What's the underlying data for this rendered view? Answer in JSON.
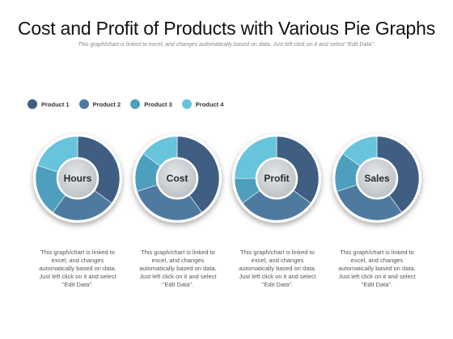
{
  "title": "Cost and Profit of Products with Various Pie Graphs",
  "subtitle": "This graph/chart is linked to excel, and changes automatically based on data. Just left click on it and select \"Edit Data\".",
  "colors": {
    "product1": "#3f5e82",
    "product2": "#4f7aa0",
    "product3": "#4d9fbd",
    "product4": "#68c3dc"
  },
  "description": "This graph/chart is linked to excel, and changes automatically based on data. Just left click on it and select \"Edit Data\".",
  "chart_data": [
    {
      "type": "pie",
      "title": "Hours",
      "categories": [
        "Product 1",
        "Product 2",
        "Product 3",
        "Product 4"
      ],
      "values": [
        35,
        25,
        20,
        20
      ]
    },
    {
      "type": "pie",
      "title": "Cost",
      "categories": [
        "Product 1",
        "Product 2",
        "Product 3",
        "Product 4"
      ],
      "values": [
        40,
        30,
        15,
        15
      ]
    },
    {
      "type": "pie",
      "title": "Profit",
      "categories": [
        "Product 1",
        "Product 2",
        "Product 3",
        "Product 4"
      ],
      "values": [
        35,
        30,
        10,
        25
      ]
    },
    {
      "type": "pie",
      "title": "Sales",
      "categories": [
        "Product 1",
        "Product 2",
        "Product 3",
        "Product 4"
      ],
      "values": [
        40,
        30,
        15,
        15
      ]
    }
  ]
}
